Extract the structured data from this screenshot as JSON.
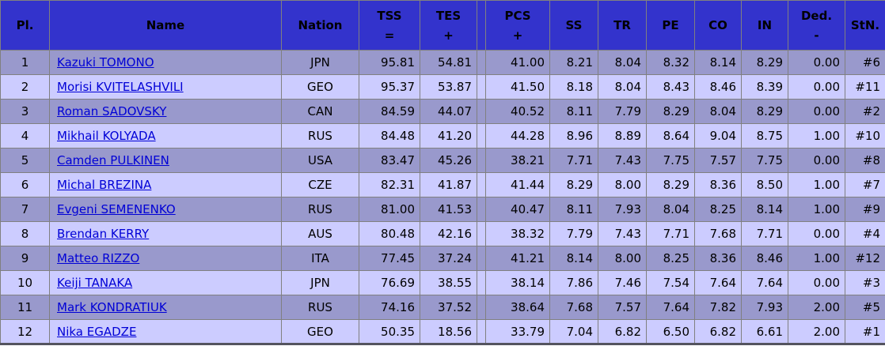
{
  "colors": {
    "header_bg": "#3333cc",
    "row_odd_bg": "#9999cc",
    "row_even_bg": "#ccccff",
    "grid_line": "#808080",
    "link_blue": "#0000d6",
    "bottom_border": "#54545e"
  },
  "table": {
    "columns": [
      {
        "key": "pl",
        "label": "Pl.",
        "sub": ""
      },
      {
        "key": "name",
        "label": "Name",
        "sub": ""
      },
      {
        "key": "nation",
        "label": "Nation",
        "sub": ""
      },
      {
        "key": "tss",
        "label": "TSS",
        "sub": "="
      },
      {
        "key": "tes",
        "label": "TES",
        "sub": "+"
      },
      {
        "key": "sp",
        "label": "",
        "sub": ""
      },
      {
        "key": "pcs",
        "label": "PCS",
        "sub": "+"
      },
      {
        "key": "ss",
        "label": "SS",
        "sub": ""
      },
      {
        "key": "tr",
        "label": "TR",
        "sub": ""
      },
      {
        "key": "pe",
        "label": "PE",
        "sub": ""
      },
      {
        "key": "co",
        "label": "CO",
        "sub": ""
      },
      {
        "key": "in",
        "label": "IN",
        "sub": ""
      },
      {
        "key": "ded",
        "label": "Ded.",
        "sub": "-"
      },
      {
        "key": "stn",
        "label": "StN.",
        "sub": ""
      }
    ],
    "rows": [
      {
        "pl": "1",
        "name": "Kazuki TOMONO",
        "nation": "JPN",
        "tss": "95.81",
        "tes": "54.81",
        "sp": "",
        "pcs": "41.00",
        "ss": "8.21",
        "tr": "8.04",
        "pe": "8.32",
        "co": "8.14",
        "in": "8.29",
        "ded": "0.00",
        "stn": "#6"
      },
      {
        "pl": "2",
        "name": "Morisi KVITELASHVILI",
        "nation": "GEO",
        "tss": "95.37",
        "tes": "53.87",
        "sp": "",
        "pcs": "41.50",
        "ss": "8.18",
        "tr": "8.04",
        "pe": "8.43",
        "co": "8.46",
        "in": "8.39",
        "ded": "0.00",
        "stn": "#11"
      },
      {
        "pl": "3",
        "name": "Roman SADOVSKY",
        "nation": "CAN",
        "tss": "84.59",
        "tes": "44.07",
        "sp": "",
        "pcs": "40.52",
        "ss": "8.11",
        "tr": "7.79",
        "pe": "8.29",
        "co": "8.04",
        "in": "8.29",
        "ded": "0.00",
        "stn": "#2"
      },
      {
        "pl": "4",
        "name": "Mikhail KOLYADA",
        "nation": "RUS",
        "tss": "84.48",
        "tes": "41.20",
        "sp": "",
        "pcs": "44.28",
        "ss": "8.96",
        "tr": "8.89",
        "pe": "8.64",
        "co": "9.04",
        "in": "8.75",
        "ded": "1.00",
        "stn": "#10"
      },
      {
        "pl": "5",
        "name": "Camden PULKINEN",
        "nation": "USA",
        "tss": "83.47",
        "tes": "45.26",
        "sp": "",
        "pcs": "38.21",
        "ss": "7.71",
        "tr": "7.43",
        "pe": "7.75",
        "co": "7.57",
        "in": "7.75",
        "ded": "0.00",
        "stn": "#8"
      },
      {
        "pl": "6",
        "name": "Michal BREZINA",
        "nation": "CZE",
        "tss": "82.31",
        "tes": "41.87",
        "sp": "",
        "pcs": "41.44",
        "ss": "8.29",
        "tr": "8.00",
        "pe": "8.29",
        "co": "8.36",
        "in": "8.50",
        "ded": "1.00",
        "stn": "#7"
      },
      {
        "pl": "7",
        "name": "Evgeni SEMENENKO",
        "nation": "RUS",
        "tss": "81.00",
        "tes": "41.53",
        "sp": "",
        "pcs": "40.47",
        "ss": "8.11",
        "tr": "7.93",
        "pe": "8.04",
        "co": "8.25",
        "in": "8.14",
        "ded": "1.00",
        "stn": "#9"
      },
      {
        "pl": "8",
        "name": "Brendan KERRY",
        "nation": "AUS",
        "tss": "80.48",
        "tes": "42.16",
        "sp": "",
        "pcs": "38.32",
        "ss": "7.79",
        "tr": "7.43",
        "pe": "7.71",
        "co": "7.68",
        "in": "7.71",
        "ded": "0.00",
        "stn": "#4"
      },
      {
        "pl": "9",
        "name": "Matteo RIZZO",
        "nation": "ITA",
        "tss": "77.45",
        "tes": "37.24",
        "sp": "",
        "pcs": "41.21",
        "ss": "8.14",
        "tr": "8.00",
        "pe": "8.25",
        "co": "8.36",
        "in": "8.46",
        "ded": "1.00",
        "stn": "#12"
      },
      {
        "pl": "10",
        "name": "Keiji TANAKA",
        "nation": "JPN",
        "tss": "76.69",
        "tes": "38.55",
        "sp": "",
        "pcs": "38.14",
        "ss": "7.86",
        "tr": "7.46",
        "pe": "7.54",
        "co": "7.64",
        "in": "7.64",
        "ded": "0.00",
        "stn": "#3"
      },
      {
        "pl": "11",
        "name": "Mark KONDRATIUK",
        "nation": "RUS",
        "tss": "74.16",
        "tes": "37.52",
        "sp": "",
        "pcs": "38.64",
        "ss": "7.68",
        "tr": "7.57",
        "pe": "7.64",
        "co": "7.82",
        "in": "7.93",
        "ded": "2.00",
        "stn": "#5"
      },
      {
        "pl": "12",
        "name": "Nika EGADZE",
        "nation": "GEO",
        "tss": "50.35",
        "tes": "18.56",
        "sp": "",
        "pcs": "33.79",
        "ss": "7.04",
        "tr": "6.82",
        "pe": "6.50",
        "co": "6.82",
        "in": "6.61",
        "ded": "2.00",
        "stn": "#1"
      }
    ]
  }
}
